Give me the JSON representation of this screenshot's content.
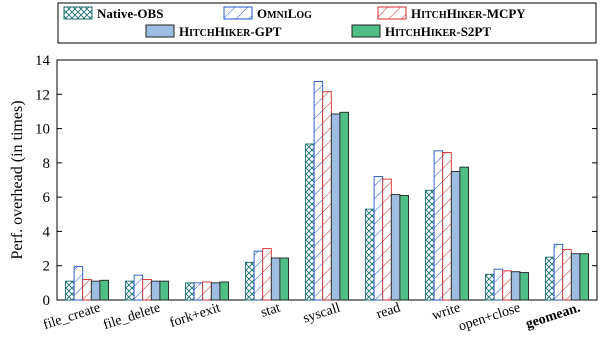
{
  "chart_data": {
    "type": "bar",
    "ylabel": "Perf. overhead (in times)",
    "xlabel": "",
    "ylim": [
      0,
      14
    ],
    "yticks": [
      0,
      2,
      4,
      6,
      8,
      10,
      12,
      14
    ],
    "categories": [
      "file_create",
      "file_delete",
      "fork+exit",
      "stat",
      "syscall",
      "read",
      "write",
      "open+close",
      "geomean."
    ],
    "bold_categories": [
      "geomean."
    ],
    "legend_position": "top-center",
    "grid": false,
    "series": [
      {
        "name": "Native-OBS",
        "pattern": "crosshatch",
        "color": "#1a6e6e",
        "values": [
          1.1,
          1.1,
          1.0,
          2.2,
          9.1,
          5.3,
          6.4,
          1.5,
          2.5
        ]
      },
      {
        "name": "OmniLog",
        "pattern": "diagonal",
        "color": "#2255c4",
        "values": [
          1.95,
          1.45,
          1.0,
          2.85,
          12.75,
          7.2,
          8.7,
          1.8,
          3.25
        ]
      },
      {
        "name": "HitchHiker-MCPY",
        "pattern": "diagonal",
        "color": "#d42a2a",
        "values": [
          1.2,
          1.2,
          1.05,
          3.0,
          12.15,
          7.05,
          8.6,
          1.7,
          2.95
        ]
      },
      {
        "name": "HitchHiker-GPT",
        "pattern": "solid",
        "color": "#9dbde3",
        "values": [
          1.1,
          1.1,
          1.0,
          2.45,
          10.85,
          6.15,
          7.5,
          1.65,
          2.7
        ]
      },
      {
        "name": "HitchHiker-S2PT",
        "pattern": "solid",
        "color": "#4fbf85",
        "values": [
          1.15,
          1.1,
          1.05,
          2.45,
          10.95,
          6.1,
          7.75,
          1.6,
          2.7
        ]
      }
    ]
  }
}
